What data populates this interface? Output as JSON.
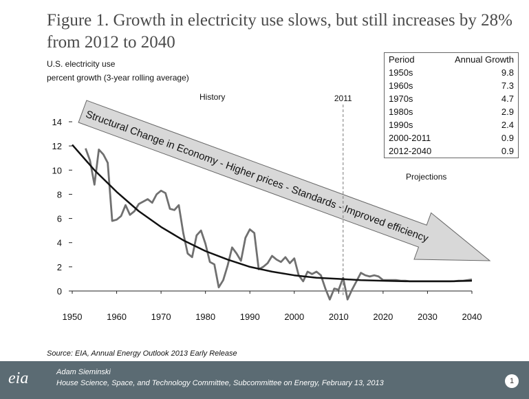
{
  "slide": {
    "title": "Figure 1. Growth in electricity use slows, but still increases by 28% from 2012 to 2040",
    "ylabel_line1": "U.S. electricity use",
    "ylabel_line2": "percent growth (3-year rolling average)",
    "history_label": "History",
    "projections_label": "Projections",
    "divider_label": "2011",
    "arrow_text": "Structural Change in Economy - Higher prices - Standards - Improved efficiency",
    "source": "Source:  EIA, Annual Energy Outlook 2013 Early Release",
    "table": {
      "headers": [
        "Period",
        "Annual Growth"
      ],
      "rows": [
        [
          "1950s",
          "9.8"
        ],
        [
          "1960s",
          "7.3"
        ],
        [
          "1970s",
          "4.7"
        ],
        [
          "1980s",
          "2.9"
        ],
        [
          "1990s",
          "2.4"
        ],
        [
          "2000-2011",
          "0.9"
        ],
        [
          "2012-2040",
          "0.9"
        ]
      ]
    },
    "footer": {
      "logo": "eia",
      "presenter": "Adam Sieminski",
      "event": "House Science, Space, and Technology Committee, Subcommittee on Energy, February 13, 2013",
      "page": "1"
    }
  },
  "colors": {
    "series_line": "#707070",
    "trend_line": "#111111",
    "arrow_fill": "#d8d8d8",
    "footer_bg": "#5b6b73"
  },
  "chart_data": {
    "type": "line",
    "title": "",
    "xlabel": "",
    "ylabel": "U.S. electricity use percent growth (3-year rolling average)",
    "xlim": [
      1950,
      2040
    ],
    "ylim": [
      0,
      14
    ],
    "xticks": [
      1950,
      1960,
      1970,
      1980,
      1990,
      2000,
      2010,
      2020,
      2030,
      2040
    ],
    "yticks": [
      0,
      2,
      4,
      6,
      8,
      10,
      12,
      14
    ],
    "grid": false,
    "legend": "none",
    "series": [
      {
        "x": [
          1953,
          1954,
          1955,
          1956,
          1957,
          1958,
          1959,
          1960,
          1961,
          1962,
          1963,
          1964,
          1965,
          1966,
          1967,
          1968,
          1969,
          1970,
          1971,
          1972,
          1973,
          1974,
          1975,
          1976,
          1977,
          1978,
          1979,
          1980,
          1981,
          1982,
          1983,
          1984,
          1985,
          1986,
          1987,
          1988,
          1989,
          1990,
          1991,
          1992,
          1993,
          1994,
          1995,
          1996,
          1997,
          1998,
          1999,
          2000,
          2001,
          2002,
          2003,
          2004,
          2005,
          2006,
          2007,
          2008,
          2009,
          2010,
          2011,
          2012,
          2013,
          2014,
          2015,
          2016,
          2017,
          2018,
          2019,
          2020,
          2021,
          2022,
          2023,
          2024,
          2025,
          2026,
          2027,
          2028,
          2029,
          2030,
          2031,
          2032,
          2033,
          2034,
          2035,
          2036,
          2037,
          2038,
          2039,
          2040
        ],
        "y": [
          11.8,
          10.8,
          8.8,
          11.7,
          11.3,
          10.6,
          5.8,
          5.9,
          6.2,
          7.1,
          6.3,
          6.6,
          7.2,
          7.4,
          7.6,
          7.3,
          8.0,
          8.3,
          8.1,
          6.8,
          6.7,
          7.1,
          4.8,
          3.1,
          2.8,
          4.6,
          5.0,
          3.9,
          2.4,
          2.2,
          0.3,
          0.9,
          2.1,
          3.6,
          3.1,
          2.5,
          4.4,
          5.1,
          4.8,
          1.8,
          2.0,
          2.3,
          2.9,
          2.6,
          2.4,
          2.8,
          2.3,
          2.7,
          1.3,
          0.8,
          1.6,
          1.4,
          1.6,
          1.3,
          0.2,
          -0.7,
          0.2,
          0.1,
          1.1,
          -0.7,
          0.1,
          0.8,
          1.5,
          1.3,
          1.2,
          1.3,
          1.2,
          0.9,
          0.9,
          0.9,
          0.9,
          0.85,
          0.85,
          0.8,
          0.8,
          0.8,
          0.8,
          0.8,
          0.8,
          0.8,
          0.8,
          0.8,
          0.8,
          0.8,
          0.85,
          0.85,
          0.9,
          0.95
        ]
      },
      {
        "x": [
          1950,
          1955,
          1960,
          1965,
          1970,
          1975,
          1980,
          1985,
          1990,
          1995,
          2000,
          2005,
          2010,
          2015,
          2020,
          2025,
          2030,
          2035,
          2040
        ],
        "y": [
          12.1,
          10.0,
          8.2,
          6.6,
          5.3,
          4.2,
          3.3,
          2.6,
          2.0,
          1.6,
          1.3,
          1.1,
          1.0,
          0.9,
          0.85,
          0.8,
          0.8,
          0.8,
          0.85
        ]
      }
    ]
  }
}
